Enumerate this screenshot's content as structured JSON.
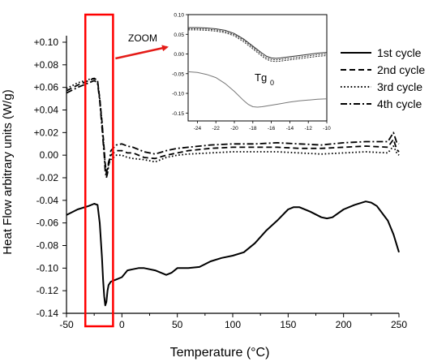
{
  "chart_data": [
    {
      "type": "line",
      "xlabel": "Temperature (°C)",
      "ylabel": "Heat Flow arbitrary units (W/g)",
      "xlim": [
        -50,
        250
      ],
      "ylim": [
        -0.14,
        0.1
      ],
      "x_ticks": [
        "-50",
        "0",
        "50",
        "100",
        "150",
        "200",
        "250"
      ],
      "x_tick_values": [
        -50,
        0,
        50,
        100,
        150,
        200,
        250
      ],
      "y_ticks": [
        "+0.10",
        "+0.08",
        "+0.06",
        "+0.04",
        "+0.02",
        "0.00",
        "-0.02",
        "-0.04",
        "-0.06",
        "-0.08",
        "-0.10",
        "-0.12",
        "-0.14"
      ],
      "y_tick_values": [
        0.1,
        0.08,
        0.06,
        0.04,
        0.02,
        0.0,
        -0.02,
        -0.04,
        -0.06,
        -0.08,
        -0.1,
        -0.12,
        -0.14
      ],
      "legend_position": "right",
      "series": [
        {
          "name": "1st cycle",
          "style": "solid",
          "color": "#000000",
          "x": [
            -50,
            -40,
            -30,
            -25,
            -22,
            -20,
            -18,
            -17,
            -16,
            -15,
            -14,
            -13,
            -12,
            -10,
            -5,
            0,
            5,
            10,
            15,
            20,
            30,
            40,
            45,
            50,
            60,
            70,
            80,
            90,
            100,
            110,
            120,
            130,
            140,
            150,
            155,
            160,
            170,
            180,
            185,
            190,
            200,
            210,
            220,
            225,
            230,
            240,
            245,
            250
          ],
          "y": [
            -0.053,
            -0.048,
            -0.045,
            -0.043,
            -0.044,
            -0.06,
            -0.09,
            -0.11,
            -0.125,
            -0.133,
            -0.13,
            -0.12,
            -0.115,
            -0.112,
            -0.11,
            -0.108,
            -0.102,
            -0.101,
            -0.1,
            -0.1,
            -0.102,
            -0.106,
            -0.104,
            -0.1,
            -0.1,
            -0.099,
            -0.094,
            -0.091,
            -0.089,
            -0.086,
            -0.078,
            -0.067,
            -0.058,
            -0.048,
            -0.046,
            -0.046,
            -0.05,
            -0.055,
            -0.056,
            -0.055,
            -0.048,
            -0.044,
            -0.041,
            -0.042,
            -0.045,
            -0.058,
            -0.07,
            -0.086
          ]
        },
        {
          "name": "2nd cycle",
          "style": "dashed",
          "color": "#000000",
          "x": [
            -50,
            -40,
            -30,
            -25,
            -22,
            -20,
            -18,
            -16,
            -15,
            -14,
            -13,
            -12,
            -10,
            -5,
            0,
            5,
            10,
            20,
            30,
            40,
            50,
            60,
            80,
            100,
            120,
            140,
            160,
            180,
            200,
            220,
            240,
            245,
            248,
            250
          ],
          "y": [
            0.057,
            0.062,
            0.066,
            0.068,
            0.066,
            0.05,
            0.03,
            0.005,
            -0.008,
            -0.015,
            -0.012,
            -0.006,
            0.0,
            0.004,
            0.004,
            0.002,
            0.002,
            -0.002,
            -0.003,
            0.0,
            0.002,
            0.004,
            0.006,
            0.007,
            0.007,
            0.007,
            0.006,
            0.006,
            0.007,
            0.008,
            0.007,
            0.014,
            0.005,
            0.003
          ]
        },
        {
          "name": "3rd cycle",
          "style": "dotted",
          "color": "#000000",
          "x": [
            -50,
            -40,
            -30,
            -25,
            -22,
            -20,
            -18,
            -16,
            -15,
            -14,
            -13,
            -12,
            -10,
            -5,
            0,
            5,
            10,
            20,
            30,
            40,
            50,
            60,
            80,
            100,
            120,
            140,
            160,
            180,
            200,
            220,
            240,
            245,
            248,
            250
          ],
          "y": [
            0.059,
            0.064,
            0.067,
            0.068,
            0.066,
            0.05,
            0.03,
            0.004,
            -0.01,
            -0.017,
            -0.014,
            -0.008,
            -0.004,
            0.0,
            0.0,
            -0.002,
            -0.003,
            -0.004,
            -0.006,
            -0.002,
            0.0,
            0.001,
            0.002,
            0.003,
            0.003,
            0.003,
            0.002,
            0.001,
            0.002,
            0.003,
            0.002,
            0.008,
            0.002,
            0.0
          ]
        },
        {
          "name": "4th cycle",
          "style": "dashdot",
          "color": "#000000",
          "x": [
            -50,
            -40,
            -30,
            -25,
            -22,
            -20,
            -18,
            -16,
            -15,
            -14,
            -13,
            -12,
            -10,
            -5,
            0,
            5,
            10,
            20,
            30,
            40,
            50,
            60,
            80,
            100,
            120,
            140,
            160,
            180,
            200,
            220,
            240,
            245,
            248,
            250
          ],
          "y": [
            0.055,
            0.06,
            0.064,
            0.066,
            0.064,
            0.048,
            0.025,
            0.0,
            -0.015,
            -0.02,
            -0.016,
            -0.01,
            0.004,
            0.009,
            0.01,
            0.008,
            0.007,
            0.003,
            0.001,
            0.004,
            0.006,
            0.007,
            0.009,
            0.01,
            0.01,
            0.011,
            0.01,
            0.009,
            0.011,
            0.012,
            0.012,
            0.02,
            0.011,
            0.01
          ]
        }
      ],
      "annotation": "ZOOM",
      "highlight_x_range": [
        -33,
        -8
      ],
      "highlight_color": "#ff0000"
    },
    {
      "type": "line",
      "inset": true,
      "xlim": [
        -25,
        -10
      ],
      "ylim": [
        -0.17,
        0.1
      ],
      "x_ticks": [
        "-24",
        "-22",
        "-20",
        "-18",
        "-16",
        "-14",
        "-12",
        "-10"
      ],
      "x_tick_values": [
        -24,
        -22,
        -20,
        -18,
        -16,
        -14,
        -12,
        -10
      ],
      "y_ticks": [
        "0.10",
        "0.05",
        "0.00",
        "-0.05",
        "-0.10",
        "-0.15"
      ],
      "y_tick_values": [
        0.1,
        0.05,
        0.0,
        -0.05,
        -0.1,
        -0.15
      ],
      "label_main": "Tg",
      "label_sub": "0",
      "series": [
        {
          "color": "#777777",
          "x": [
            -25,
            -24,
            -23,
            -22,
            -21,
            -20,
            -19,
            -18.5,
            -18,
            -17.5,
            -17,
            -16,
            -15,
            -14,
            -13,
            -12,
            -11,
            -10
          ],
          "y": [
            -0.045,
            -0.047,
            -0.052,
            -0.06,
            -0.075,
            -0.095,
            -0.118,
            -0.128,
            -0.134,
            -0.135,
            -0.134,
            -0.13,
            -0.126,
            -0.122,
            -0.119,
            -0.117,
            -0.115,
            -0.114
          ]
        },
        {
          "color": "#333333",
          "x": [
            -25,
            -24,
            -23,
            -22,
            -21,
            -20,
            -19,
            -18,
            -17,
            -16.5,
            -16,
            -15.5,
            -15,
            -14,
            -13,
            -12,
            -11,
            -10
          ],
          "y": [
            0.067,
            0.067,
            0.066,
            0.064,
            0.06,
            0.052,
            0.038,
            0.02,
            0.002,
            -0.006,
            -0.01,
            -0.011,
            -0.01,
            -0.007,
            -0.004,
            -0.001,
            0.002,
            0.004
          ]
        },
        {
          "color": "#333333",
          "dashed": true,
          "x": [
            -25,
            -24,
            -23,
            -22,
            -21,
            -20,
            -19,
            -18,
            -17,
            -16.5,
            -16,
            -15.5,
            -15,
            -14,
            -13,
            -12,
            -11,
            -10
          ],
          "y": [
            0.064,
            0.064,
            0.063,
            0.061,
            0.057,
            0.049,
            0.035,
            0.017,
            -0.002,
            -0.01,
            -0.014,
            -0.015,
            -0.014,
            -0.011,
            -0.008,
            -0.005,
            -0.002,
            0.0
          ]
        },
        {
          "color": "#333333",
          "dashed": true,
          "x": [
            -25,
            -24,
            -23,
            -22,
            -21,
            -20,
            -19,
            -18,
            -17,
            -16.5,
            -16,
            -15.5,
            -15,
            -14,
            -13,
            -12,
            -11,
            -10
          ],
          "y": [
            0.061,
            0.061,
            0.06,
            0.058,
            0.054,
            0.046,
            0.031,
            0.013,
            -0.006,
            -0.014,
            -0.018,
            -0.019,
            -0.018,
            -0.015,
            -0.012,
            -0.009,
            -0.006,
            -0.004
          ]
        }
      ]
    }
  ]
}
